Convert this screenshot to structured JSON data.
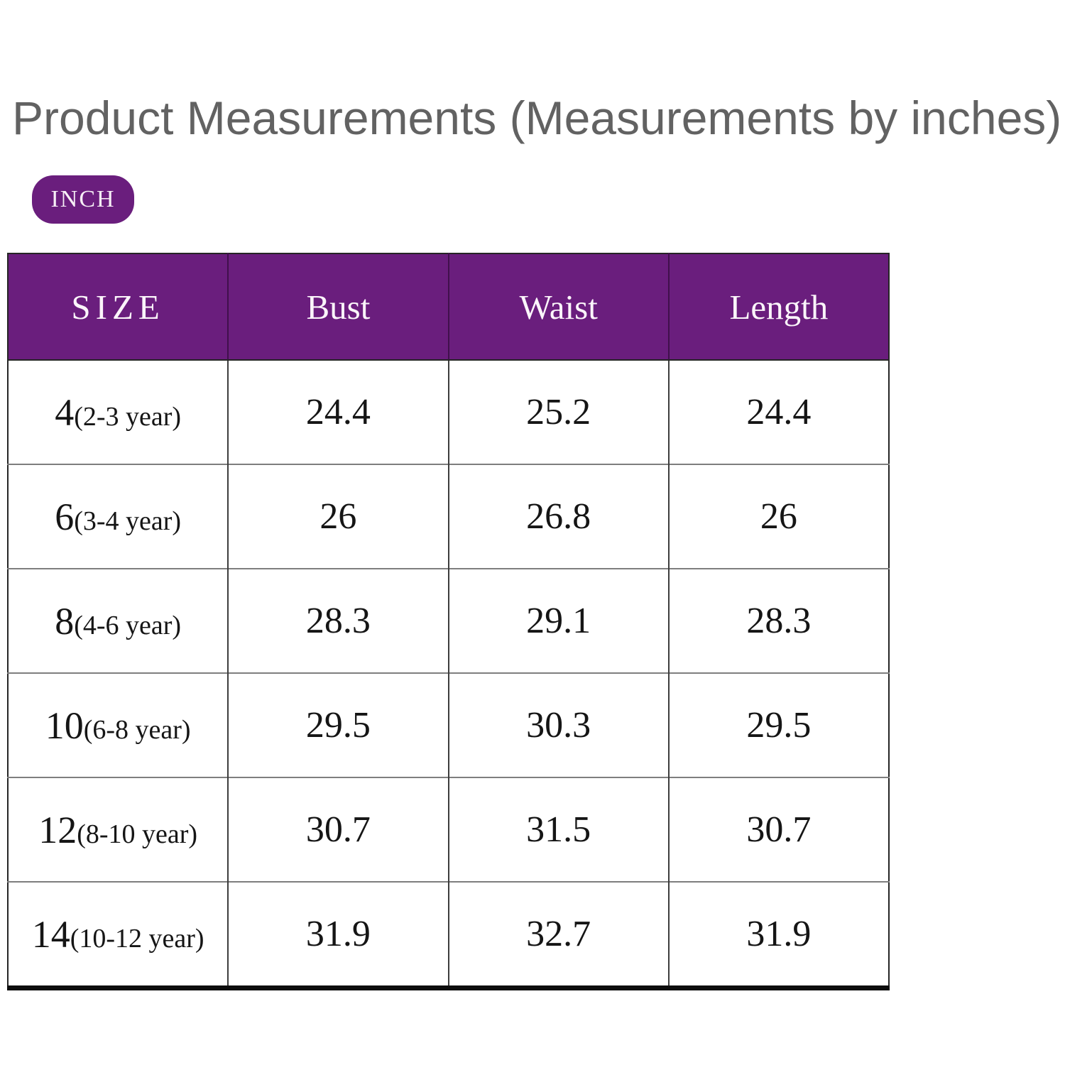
{
  "title": "Product Measurements (Measurements by inches)",
  "unit_badge_label": "INCH",
  "colors": {
    "accent_purple": "#6A1E7D",
    "title_gray": "#626262",
    "table_text": "#151515"
  },
  "table": {
    "headers": [
      "SIZE",
      "Bust",
      "Waist",
      "Length"
    ],
    "rows": [
      {
        "size": "4",
        "age": "(2-3 year)",
        "bust": "24.4",
        "waist": "25.2",
        "length": "24.4"
      },
      {
        "size": "6",
        "age": "(3-4 year)",
        "bust": "26",
        "waist": "26.8",
        "length": "26"
      },
      {
        "size": "8",
        "age": "(4-6 year)",
        "bust": "28.3",
        "waist": "29.1",
        "length": "28.3"
      },
      {
        "size": "10",
        "age": "(6-8 year)",
        "bust": "29.5",
        "waist": "30.3",
        "length": "29.5"
      },
      {
        "size": "12",
        "age": "(8-10 year)",
        "bust": "30.7",
        "waist": "31.5",
        "length": "30.7"
      },
      {
        "size": "14",
        "age": "(10-12 year)",
        "bust": "31.9",
        "waist": "32.7",
        "length": "31.9"
      }
    ]
  },
  "chart_data": {
    "type": "table",
    "title": "Product Measurements (Measurements by inches)",
    "unit": "INCH",
    "columns": [
      "SIZE",
      "Bust",
      "Waist",
      "Length"
    ],
    "rows": [
      [
        "4(2-3 year)",
        24.4,
        25.2,
        24.4
      ],
      [
        "6(3-4 year)",
        26,
        26.8,
        26
      ],
      [
        "8(4-6 year)",
        28.3,
        29.1,
        28.3
      ],
      [
        "10(6-8 year)",
        29.5,
        30.3,
        29.5
      ],
      [
        "12(8-10 year)",
        30.7,
        31.5,
        30.7
      ],
      [
        "14(10-12 year)",
        31.9,
        32.7,
        31.9
      ]
    ],
    "layout": {
      "header_background": "#6A1E7D",
      "header_text_color": "#FFFFFF",
      "grid": true
    }
  }
}
